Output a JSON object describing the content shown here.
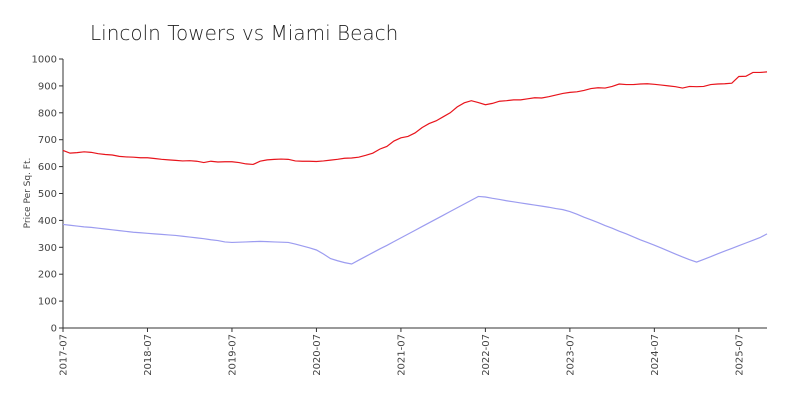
{
  "chart_data": {
    "type": "line",
    "title": "Lincoln Towers vs Miami Beach",
    "y_label": "Price Per Sq. Ft.",
    "x": [
      "2017-07",
      "2017-08",
      "2017-09",
      "2017-10",
      "2017-11",
      "2017-12",
      "2018-01",
      "2018-02",
      "2018-03",
      "2018-04",
      "2018-05",
      "2018-06",
      "2018-07",
      "2018-08",
      "2018-09",
      "2018-10",
      "2018-11",
      "2018-12",
      "2019-01",
      "2019-02",
      "2019-03",
      "2019-04",
      "2019-05",
      "2019-06",
      "2019-07",
      "2019-08",
      "2019-09",
      "2019-10",
      "2019-11",
      "2019-12",
      "2020-01",
      "2020-02",
      "2020-03",
      "2020-04",
      "2020-05",
      "2020-06",
      "2020-07",
      "2020-08",
      "2020-09",
      "2020-10",
      "2020-11",
      "2020-12",
      "2021-01",
      "2021-02",
      "2021-03",
      "2021-04",
      "2021-05",
      "2021-06",
      "2021-07",
      "2021-08",
      "2021-09",
      "2021-10",
      "2021-11",
      "2021-12",
      "2022-01",
      "2022-02",
      "2022-03",
      "2022-04",
      "2022-05",
      "2022-06",
      "2022-07",
      "2022-08",
      "2022-09",
      "2022-10",
      "2022-11",
      "2022-12",
      "2023-01",
      "2023-02",
      "2023-03",
      "2023-04",
      "2023-05",
      "2023-06",
      "2023-07",
      "2023-08",
      "2023-09",
      "2023-10",
      "2023-11",
      "2023-12",
      "2024-01",
      "2024-02",
      "2024-03",
      "2024-04",
      "2024-05",
      "2024-06",
      "2024-07",
      "2024-08",
      "2024-09",
      "2024-10",
      "2024-11",
      "2024-12",
      "2025-01",
      "2025-02",
      "2025-03",
      "2025-04",
      "2025-05",
      "2025-06",
      "2025-07",
      "2025-08",
      "2025-09",
      "2025-10",
      "2025-11"
    ],
    "series": [
      {
        "color": "#e8141c",
        "values": [
          660,
          650,
          652,
          655,
          653,
          648,
          645,
          643,
          638,
          636,
          635,
          633,
          633,
          630,
          627,
          625,
          623,
          621,
          622,
          620,
          615,
          620,
          617,
          618,
          618,
          615,
          610,
          608,
          620,
          625,
          627,
          628,
          627,
          621,
          620,
          620,
          619,
          621,
          624,
          627,
          631,
          632,
          635,
          642,
          650,
          665,
          675,
          695,
          707,
          712,
          725,
          745,
          760,
          770,
          785,
          800,
          822,
          837,
          845,
          838,
          830,
          835,
          843,
          845,
          848,
          848,
          852,
          856,
          855,
          860,
          866,
          872,
          876,
          878,
          883,
          890,
          893,
          892,
          898,
          907,
          905,
          905,
          907,
          908,
          906,
          903,
          900,
          897,
          892,
          898,
          897,
          898,
          905,
          907,
          908,
          910,
          935,
          936,
          950,
          950,
          952
        ]
      },
      {
        "color": "#9c9cf0",
        "values": [
          385,
          382,
          379,
          376,
          374,
          371,
          368,
          365,
          362,
          359,
          356,
          354,
          352,
          350,
          348,
          346,
          344,
          341,
          338,
          335,
          332,
          328,
          325,
          320,
          318,
          319,
          320,
          321,
          322,
          321,
          320,
          319,
          318,
          312,
          305,
          298,
          290,
          275,
          258,
          250,
          243,
          238,
          252,
          266,
          280,
          294,
          307,
          321,
          335,
          349,
          363,
          377,
          391,
          405,
          419,
          433,
          447,
          461,
          475,
          489,
          487,
          482,
          478,
          473,
          469,
          465,
          461,
          457,
          453,
          449,
          444,
          440,
          433,
          423,
          412,
          402,
          392,
          381,
          371,
          360,
          350,
          339,
          328,
          318,
          308,
          297,
          286,
          275,
          264,
          254,
          245,
          255,
          265,
          276,
          286,
          296,
          306,
          316,
          326,
          336,
          350
        ]
      }
    ],
    "ylim": [
      0,
      1000
    ],
    "yticks": [
      0,
      100,
      200,
      300,
      400,
      500,
      600,
      700,
      800,
      900,
      1000
    ],
    "xticks": [
      "2017-07",
      "2018-07",
      "2019-07",
      "2020-07",
      "2021-07",
      "2022-07",
      "2023-07",
      "2024-07",
      "2025-07"
    ],
    "grid": false
  }
}
